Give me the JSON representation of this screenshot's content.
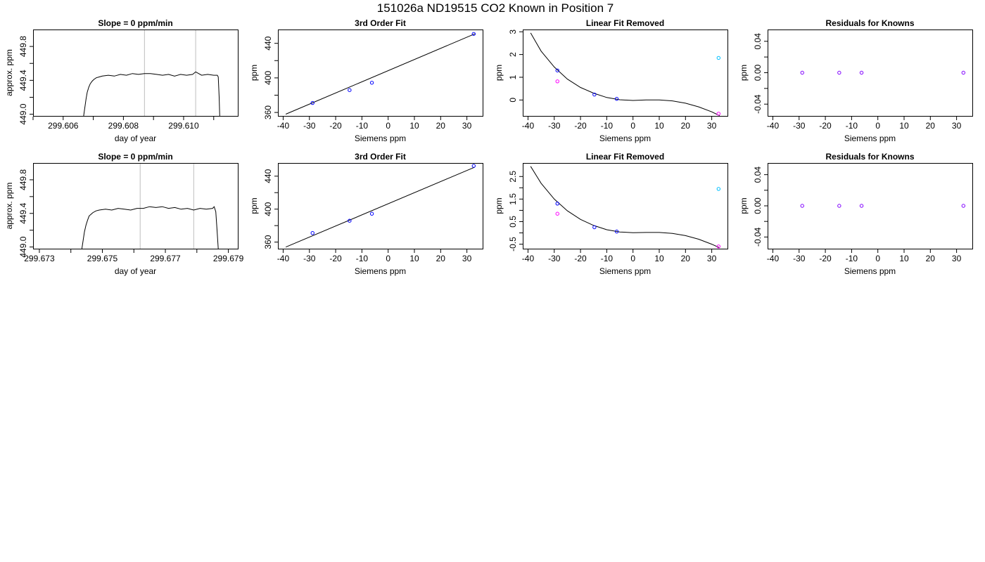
{
  "figure_title": "151026a     ND19515   CO2 Known in Position  7",
  "colors": {
    "blue": "#0000ff",
    "magenta": "#ff00ff",
    "cyan": "#00bfff",
    "purple": "#8000ff",
    "line": "#000000",
    "guide": "#bebebe"
  },
  "chart_data": [
    {
      "type": "line",
      "title": "Slope =  0  ppm/min",
      "xlabel": "day of year",
      "ylabel": "approx. ppm",
      "xlim": [
        299.605,
        299.6118
      ],
      "ylim": [
        448.98,
        450.0
      ],
      "xticks": [
        299.605,
        299.606,
        299.607,
        299.608,
        299.609,
        299.61,
        299.611
      ],
      "xtick_labels": [
        "",
        "299.606",
        "",
        "299.608",
        "",
        "299.610",
        ""
      ],
      "yticks": [
        449.0,
        449.2,
        449.4,
        449.6,
        449.8
      ],
      "ytick_labels": [
        "449.0",
        "",
        "449.4",
        "",
        "449.8"
      ],
      "vlines": [
        299.6087,
        299.6104
      ],
      "x": [
        299.60668,
        299.60672,
        299.60676,
        299.6068,
        299.60685,
        299.6069,
        299.60696,
        299.60702,
        299.6071,
        299.6072,
        299.6073,
        299.6075,
        299.6077,
        299.6079,
        299.6081,
        299.6083,
        299.6085,
        299.6087,
        299.6089,
        299.6091,
        299.6093,
        299.6095,
        299.6097,
        299.6099,
        299.6101,
        299.6103,
        299.6104,
        299.6106,
        299.6108,
        299.611,
        299.61112,
        299.61115,
        299.61118,
        299.6112
      ],
      "values": [
        448.98,
        449.08,
        449.18,
        449.26,
        449.32,
        449.36,
        449.39,
        449.41,
        449.43,
        449.44,
        449.45,
        449.46,
        449.45,
        449.47,
        449.46,
        449.48,
        449.47,
        449.48,
        449.48,
        449.47,
        449.46,
        449.47,
        449.45,
        449.47,
        449.46,
        449.47,
        449.5,
        449.46,
        449.47,
        449.46,
        449.46,
        449.44,
        449.2,
        448.98
      ]
    },
    {
      "type": "scatter",
      "title": "3rd Order Fit",
      "xlabel": "Siemens ppm",
      "ylabel": "ppm",
      "xlim": [
        -42,
        36
      ],
      "ylim": [
        356,
        456
      ],
      "xticks": [
        -40,
        -30,
        -20,
        -10,
        0,
        10,
        20,
        30
      ],
      "xtick_labels": [
        "-40",
        "-30",
        "-20",
        "-10",
        "0",
        "10",
        "20",
        "30"
      ],
      "yticks": [
        360,
        380,
        400,
        420,
        440
      ],
      "ytick_labels": [
        "360",
        "",
        "400",
        "",
        "440"
      ],
      "points": [
        {
          "x": -28.8,
          "y": 371.0,
          "color": "blue"
        },
        {
          "x": -14.7,
          "y": 385.9,
          "color": "blue"
        },
        {
          "x": -6.2,
          "y": 394.4,
          "color": "blue"
        },
        {
          "x": 32.6,
          "y": 450.9,
          "color": "blue"
        }
      ],
      "fit_x": [
        -39,
        33
      ],
      "fit_y": [
        358.0,
        451.0
      ]
    },
    {
      "type": "scatter",
      "title": "Linear Fit Removed",
      "xlabel": "Siemens ppm",
      "ylabel": "ppm",
      "xlim": [
        -42,
        36
      ],
      "ylim": [
        -0.7,
        3.1
      ],
      "xticks": [
        -40,
        -30,
        -20,
        -10,
        0,
        10,
        20,
        30
      ],
      "xtick_labels": [
        "-40",
        "-30",
        "-20",
        "-10",
        "0",
        "10",
        "20",
        "30"
      ],
      "yticks": [
        0,
        1,
        2,
        3
      ],
      "ytick_labels": [
        "0",
        "1",
        "2",
        "3"
      ],
      "points": [
        {
          "x": -28.8,
          "y": 1.3,
          "color": "blue"
        },
        {
          "x": -28.8,
          "y": 0.82,
          "color": "magenta"
        },
        {
          "x": -14.7,
          "y": 0.24,
          "color": "blue"
        },
        {
          "x": -6.2,
          "y": 0.05,
          "color": "blue"
        },
        {
          "x": 32.6,
          "y": 1.85,
          "color": "cyan"
        },
        {
          "x": 32.6,
          "y": -0.6,
          "color": "magenta"
        }
      ],
      "fit_x": [
        -39,
        -35,
        -30,
        -25,
        -20,
        -15,
        -10,
        -5,
        0,
        5,
        10,
        15,
        20,
        25,
        30,
        33
      ],
      "fit_y": [
        2.95,
        2.15,
        1.45,
        0.92,
        0.55,
        0.3,
        0.11,
        0.01,
        -0.02,
        0.0,
        0.0,
        -0.04,
        -0.14,
        -0.3,
        -0.52,
        -0.69
      ]
    },
    {
      "type": "scatter",
      "title": "Residuals for Knowns",
      "xlabel": "Siemens ppm",
      "ylabel": "ppm",
      "xlim": [
        -42,
        36
      ],
      "ylim": [
        -0.055,
        0.055
      ],
      "xticks": [
        -40,
        -30,
        -20,
        -10,
        0,
        10,
        20,
        30
      ],
      "xtick_labels": [
        "-40",
        "-30",
        "-20",
        "-10",
        "0",
        "10",
        "20",
        "30"
      ],
      "yticks": [
        -0.04,
        -0.02,
        0.0,
        0.02,
        0.04
      ],
      "ytick_labels": [
        "-0.04",
        "",
        "0.00",
        "",
        "0.04"
      ],
      "points": [
        {
          "x": -28.8,
          "y": 0.0,
          "color": "purple"
        },
        {
          "x": -14.7,
          "y": 0.0,
          "color": "purple"
        },
        {
          "x": -6.2,
          "y": 0.0,
          "color": "purple"
        },
        {
          "x": 32.6,
          "y": 0.0,
          "color": "purple"
        }
      ]
    },
    {
      "type": "line",
      "title": "Slope =  0  ppm/min",
      "xlabel": "day of year",
      "ylabel": "approx. ppm",
      "xlim": [
        299.6728,
        299.6793
      ],
      "ylim": [
        448.98,
        450.0
      ],
      "xticks": [
        299.673,
        299.674,
        299.675,
        299.676,
        299.677,
        299.678,
        299.679
      ],
      "xtick_labels": [
        "299.673",
        "",
        "299.675",
        "",
        "299.677",
        "",
        "299.679"
      ],
      "yticks": [
        449.0,
        449.2,
        449.4,
        449.6,
        449.8
      ],
      "ytick_labels": [
        "449.0",
        "",
        "449.4",
        "",
        "449.8"
      ],
      "vlines": [
        299.6762,
        299.6779
      ],
      "x": [
        299.67435,
        299.67439,
        299.67443,
        299.67448,
        299.67453,
        299.67458,
        299.67464,
        299.6747,
        299.6748,
        299.6749,
        299.6751,
        299.6753,
        299.6755,
        299.6757,
        299.6759,
        299.6761,
        299.6763,
        299.6765,
        299.6767,
        299.6769,
        299.6771,
        299.6773,
        299.6775,
        299.6777,
        299.6779,
        299.6781,
        299.6783,
        299.6785,
        299.67855,
        299.6786,
        299.67864,
        299.67868
      ],
      "values": [
        448.98,
        449.08,
        449.18,
        449.26,
        449.32,
        449.37,
        449.39,
        449.41,
        449.43,
        449.44,
        449.45,
        449.44,
        449.46,
        449.45,
        449.44,
        449.46,
        449.46,
        449.48,
        449.47,
        449.48,
        449.46,
        449.47,
        449.45,
        449.46,
        449.44,
        449.46,
        449.45,
        449.46,
        449.48,
        449.42,
        449.2,
        448.98
      ]
    },
    {
      "type": "scatter",
      "title": "3rd Order Fit",
      "xlabel": "Siemens ppm",
      "ylabel": "ppm",
      "xlim": [
        -42,
        36
      ],
      "ylim": [
        352,
        456
      ],
      "xticks": [
        -40,
        -30,
        -20,
        -10,
        0,
        10,
        20,
        30
      ],
      "xtick_labels": [
        "-40",
        "-30",
        "-20",
        "-10",
        "0",
        "10",
        "20",
        "30"
      ],
      "yticks": [
        360,
        380,
        400,
        420,
        440
      ],
      "ytick_labels": [
        "360",
        "",
        "400",
        "",
        "440"
      ],
      "points": [
        {
          "x": -28.8,
          "y": 371.0,
          "color": "blue"
        },
        {
          "x": -14.7,
          "y": 385.9,
          "color": "blue"
        },
        {
          "x": -6.2,
          "y": 394.4,
          "color": "blue"
        },
        {
          "x": 32.6,
          "y": 452.5,
          "color": "blue"
        }
      ],
      "fit_x": [
        -39,
        33
      ],
      "fit_y": [
        354.0,
        451.0
      ]
    },
    {
      "type": "scatter",
      "title": "Linear Fit Removed",
      "xlabel": "Siemens ppm",
      "ylabel": "ppm",
      "xlim": [
        -42,
        36
      ],
      "ylim": [
        -0.7,
        3.1
      ],
      "xticks": [
        -40,
        -30,
        -20,
        -10,
        0,
        10,
        20,
        30
      ],
      "xtick_labels": [
        "-40",
        "-30",
        "-20",
        "-10",
        "0",
        "10",
        "20",
        "30"
      ],
      "yticks": [
        -0.5,
        0.0,
        0.5,
        1.0,
        1.5,
        2.0,
        2.5
      ],
      "ytick_labels": [
        "-0.5",
        "",
        "0.5",
        "",
        "1.5",
        "",
        "2.5"
      ],
      "points": [
        {
          "x": -28.8,
          "y": 1.3,
          "color": "blue"
        },
        {
          "x": -28.8,
          "y": 0.85,
          "color": "magenta"
        },
        {
          "x": -14.7,
          "y": 0.25,
          "color": "blue"
        },
        {
          "x": -6.2,
          "y": 0.06,
          "color": "blue"
        },
        {
          "x": 32.6,
          "y": 1.95,
          "color": "cyan"
        },
        {
          "x": 32.6,
          "y": -0.6,
          "color": "magenta"
        }
      ],
      "fit_x": [
        -39,
        -35,
        -30,
        -25,
        -20,
        -15,
        -10,
        -5,
        0,
        5,
        10,
        15,
        20,
        25,
        30,
        33
      ],
      "fit_y": [
        2.95,
        2.2,
        1.5,
        0.98,
        0.6,
        0.33,
        0.14,
        0.04,
        0.01,
        0.02,
        0.02,
        -0.02,
        -0.12,
        -0.28,
        -0.5,
        -0.66
      ]
    },
    {
      "type": "scatter",
      "title": "Residuals for Knowns",
      "xlabel": "Siemens ppm",
      "ylabel": "ppm",
      "xlim": [
        -42,
        36
      ],
      "ylim": [
        -0.055,
        0.055
      ],
      "xticks": [
        -40,
        -30,
        -20,
        -10,
        0,
        10,
        20,
        30
      ],
      "xtick_labels": [
        "-40",
        "-30",
        "-20",
        "-10",
        "0",
        "10",
        "20",
        "30"
      ],
      "yticks": [
        -0.04,
        -0.02,
        0.0,
        0.02,
        0.04
      ],
      "ytick_labels": [
        "-0.04",
        "",
        "0.00",
        "",
        "0.04"
      ],
      "points": [
        {
          "x": -28.8,
          "y": 0.0,
          "color": "purple"
        },
        {
          "x": -14.7,
          "y": 0.0,
          "color": "purple"
        },
        {
          "x": -6.2,
          "y": 0.0,
          "color": "purple"
        },
        {
          "x": 32.6,
          "y": 0.0,
          "color": "purple"
        }
      ]
    }
  ]
}
